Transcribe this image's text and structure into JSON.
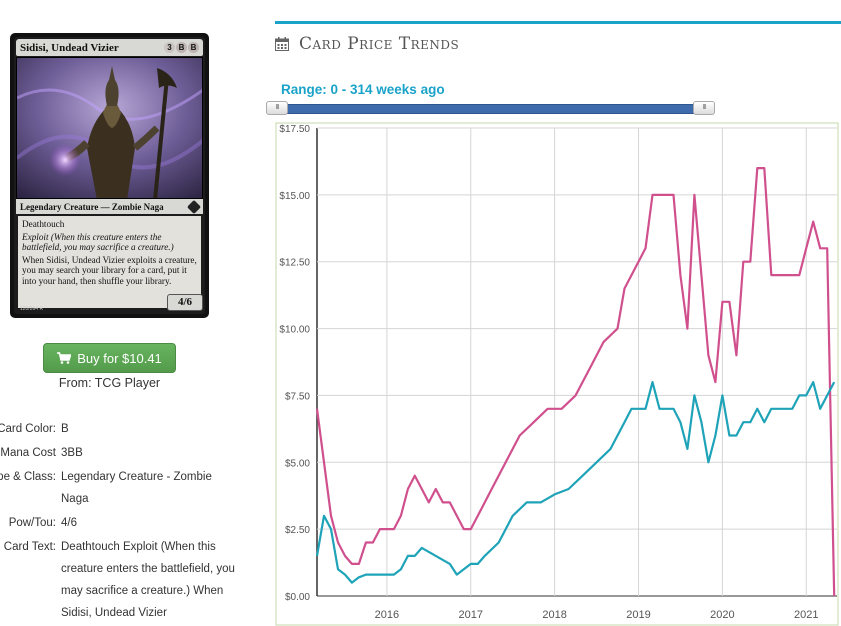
{
  "card": {
    "name": "Sidisi, Undead Vizier",
    "mana_symbols": [
      {
        "symbol": "3",
        "kind": "generic"
      },
      {
        "symbol": "B",
        "kind": "black"
      },
      {
        "symbol": "B",
        "kind": "black"
      }
    ],
    "type_line": "Legendary Creature — Zombie Naga",
    "rules_text": [
      "Deathtouch",
      "Exploit (When this creature enters the battlefield, you may sacrifice a creature.)",
      "When Sidisi, Undead Vizier exploits a creature, you may search your library for a card, put it into your hand, then shuffle your library."
    ],
    "power_toughness": "4/6",
    "collector_line": "120/264 R"
  },
  "buy": {
    "label": "Buy for $10.41",
    "from": "From: TCG Player",
    "button_color": "#5cac53"
  },
  "details": [
    {
      "label": "Card Color:",
      "value": "B"
    },
    {
      "label": "Mana Cost",
      "value": "3BB"
    },
    {
      "label": "Type & Class:",
      "value": "Legendary Creature - Zombie Naga"
    },
    {
      "label": "Pow/Tou:",
      "value": "4/6"
    },
    {
      "label": "Card Text:",
      "value": "Deathtouch Exploit (When this creature enters the battlefield, you may sacrifice a creature.) When Sidisi, Undead Vizier"
    }
  ],
  "section": {
    "title": "Card Price Trends",
    "icon": "calendar-icon",
    "accent": "#1aa3c9"
  },
  "range": {
    "label": "Range: 0 - 314 weeks ago"
  },
  "chart_data": {
    "type": "line",
    "title": "",
    "xlabel": "",
    "ylabel": "",
    "x_ticks": [
      "2016",
      "2017",
      "2018",
      "2019",
      "2020",
      "2021"
    ],
    "y_ticks": [
      "$0.00",
      "$2.50",
      "$5.00",
      "$7.50",
      "$10.00",
      "$12.50",
      "$15.00",
      "$17.50"
    ],
    "ylim": [
      0,
      17.5
    ],
    "xlim": [
      "2015-03",
      "2021-03"
    ],
    "grid": true,
    "series": [
      {
        "color": "#d0508e",
        "points": [
          [
            "2015-03",
            7.0
          ],
          [
            "2015-04",
            5.0
          ],
          [
            "2015-05",
            3.0
          ],
          [
            "2015-06",
            2.0
          ],
          [
            "2015-07",
            1.5
          ],
          [
            "2015-08",
            1.2
          ],
          [
            "2015-09",
            1.2
          ],
          [
            "2015-10",
            2.0
          ],
          [
            "2015-11",
            2.0
          ],
          [
            "2015-12",
            2.5
          ],
          [
            "2016-02",
            2.5
          ],
          [
            "2016-03",
            3.0
          ],
          [
            "2016-04",
            4.0
          ],
          [
            "2016-05",
            4.5
          ],
          [
            "2016-06",
            4.0
          ],
          [
            "2016-07",
            3.5
          ],
          [
            "2016-08",
            4.0
          ],
          [
            "2016-09",
            3.5
          ],
          [
            "2016-10",
            3.5
          ],
          [
            "2016-11",
            3.0
          ],
          [
            "2016-12",
            2.5
          ],
          [
            "2017-01",
            2.5
          ],
          [
            "2017-02",
            3.0
          ],
          [
            "2017-04",
            4.0
          ],
          [
            "2017-06",
            5.0
          ],
          [
            "2017-08",
            6.0
          ],
          [
            "2017-10",
            6.5
          ],
          [
            "2017-12",
            7.0
          ],
          [
            "2018-02",
            7.0
          ],
          [
            "2018-04",
            7.5
          ],
          [
            "2018-06",
            8.5
          ],
          [
            "2018-08",
            9.5
          ],
          [
            "2018-10",
            10.0
          ],
          [
            "2018-11",
            11.5
          ],
          [
            "2018-12",
            12.0
          ],
          [
            "2019-01",
            12.5
          ],
          [
            "2019-02",
            13.0
          ],
          [
            "2019-03",
            15.0
          ],
          [
            "2019-06",
            15.0
          ],
          [
            "2019-07",
            12.0
          ],
          [
            "2019-08",
            10.0
          ],
          [
            "2019-09",
            15.0
          ],
          [
            "2019-10",
            12.0
          ],
          [
            "2019-11",
            9.0
          ],
          [
            "2019-12",
            8.0
          ],
          [
            "2020-01",
            11.0
          ],
          [
            "2020-02",
            11.0
          ],
          [
            "2020-03",
            9.0
          ],
          [
            "2020-04",
            12.5
          ],
          [
            "2020-05",
            12.5
          ],
          [
            "2020-06",
            16.0
          ],
          [
            "2020-07",
            16.0
          ],
          [
            "2020-08",
            12.0
          ],
          [
            "2020-12",
            12.0
          ],
          [
            "2021-01",
            13.0
          ],
          [
            "2021-02",
            14.0
          ],
          [
            "2021-03",
            13.0
          ],
          [
            "2021-04",
            13.0
          ],
          [
            "2021-05",
            0.0
          ]
        ]
      },
      {
        "color": "#1fa3b8",
        "points": [
          [
            "2015-03",
            1.5
          ],
          [
            "2015-04",
            3.0
          ],
          [
            "2015-05",
            2.5
          ],
          [
            "2015-06",
            1.0
          ],
          [
            "2015-07",
            0.8
          ],
          [
            "2015-08",
            0.5
          ],
          [
            "2015-09",
            0.7
          ],
          [
            "2015-10",
            0.8
          ],
          [
            "2015-12",
            0.8
          ],
          [
            "2016-02",
            0.8
          ],
          [
            "2016-03",
            1.0
          ],
          [
            "2016-04",
            1.5
          ],
          [
            "2016-05",
            1.5
          ],
          [
            "2016-06",
            1.8
          ],
          [
            "2016-08",
            1.5
          ],
          [
            "2016-10",
            1.2
          ],
          [
            "2016-11",
            0.8
          ],
          [
            "2016-12",
            1.0
          ],
          [
            "2017-01",
            1.2
          ],
          [
            "2017-02",
            1.2
          ],
          [
            "2017-03",
            1.5
          ],
          [
            "2017-05",
            2.0
          ],
          [
            "2017-07",
            3.0
          ],
          [
            "2017-09",
            3.5
          ],
          [
            "2017-11",
            3.5
          ],
          [
            "2018-01",
            3.8
          ],
          [
            "2018-03",
            4.0
          ],
          [
            "2018-05",
            4.5
          ],
          [
            "2018-07",
            5.0
          ],
          [
            "2018-09",
            5.5
          ],
          [
            "2018-11",
            6.5
          ],
          [
            "2018-12",
            7.0
          ],
          [
            "2019-01",
            7.0
          ],
          [
            "2019-02",
            7.0
          ],
          [
            "2019-03",
            8.0
          ],
          [
            "2019-04",
            7.0
          ],
          [
            "2019-05",
            7.0
          ],
          [
            "2019-06",
            7.0
          ],
          [
            "2019-07",
            6.5
          ],
          [
            "2019-08",
            5.5
          ],
          [
            "2019-09",
            7.5
          ],
          [
            "2019-10",
            6.5
          ],
          [
            "2019-11",
            5.0
          ],
          [
            "2019-12",
            6.0
          ],
          [
            "2020-01",
            7.5
          ],
          [
            "2020-02",
            6.0
          ],
          [
            "2020-03",
            6.0
          ],
          [
            "2020-04",
            6.5
          ],
          [
            "2020-05",
            6.5
          ],
          [
            "2020-06",
            7.0
          ],
          [
            "2020-07",
            6.5
          ],
          [
            "2020-08",
            7.0
          ],
          [
            "2020-09",
            7.0
          ],
          [
            "2020-10",
            7.0
          ],
          [
            "2020-11",
            7.0
          ],
          [
            "2020-12",
            7.5
          ],
          [
            "2021-01",
            7.5
          ],
          [
            "2021-02",
            8.0
          ],
          [
            "2021-03",
            7.0
          ],
          [
            "2021-04",
            7.5
          ],
          [
            "2021-05",
            8.0
          ]
        ]
      }
    ]
  }
}
